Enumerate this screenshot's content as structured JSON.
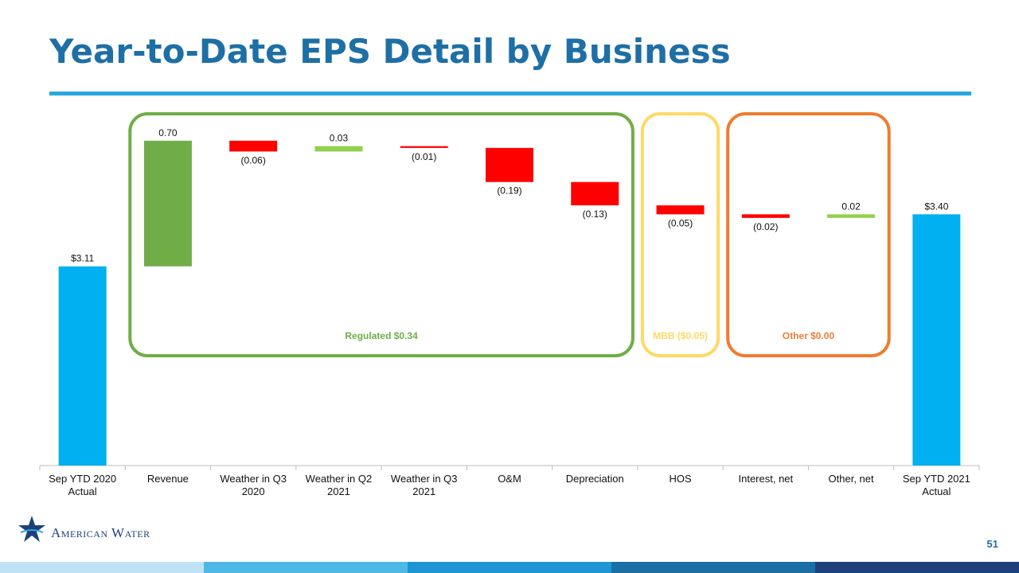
{
  "chart_data": {
    "type": "waterfall",
    "title": "Year-to-Date EPS Detail by Business",
    "categories": [
      "Sep YTD 2020 Actual",
      "Revenue",
      "Weather in Q3 2020",
      "Weather in Q2 2021",
      "Weather in Q3 2021",
      "O&M",
      "Depreciation",
      "HOS",
      "Interest, net",
      "Other, net",
      "Sep YTD 2021 Actual"
    ],
    "values": [
      3.11,
      0.7,
      -0.06,
      0.03,
      -0.01,
      -0.19,
      -0.13,
      -0.05,
      -0.02,
      0.02,
      3.4
    ],
    "value_labels": [
      "$3.11",
      "0.70",
      "(0.06)",
      "0.03",
      "(0.01)",
      "(0.19)",
      "(0.13)",
      "(0.05)",
      "(0.02)",
      "0.02",
      "$3.40"
    ],
    "colors": [
      "#00b0f0",
      "#70ad47",
      "#ff0000",
      "#92d050",
      "#ff0000",
      "#ff0000",
      "#ff0000",
      "#ff0000",
      "#ff0000",
      "#92d050",
      "#00b0f0"
    ],
    "ylim": [
      2.0,
      4.0
    ],
    "groups": [
      {
        "label": "Regulated $0.34",
        "color": "#70ad47"
      },
      {
        "label": "MBB ($0.05)",
        "color": "#ffd966"
      },
      {
        "label": "Other $0.00",
        "color": "#ed7d31"
      }
    ]
  },
  "footer": {
    "logo": "American Water",
    "page": "51"
  }
}
